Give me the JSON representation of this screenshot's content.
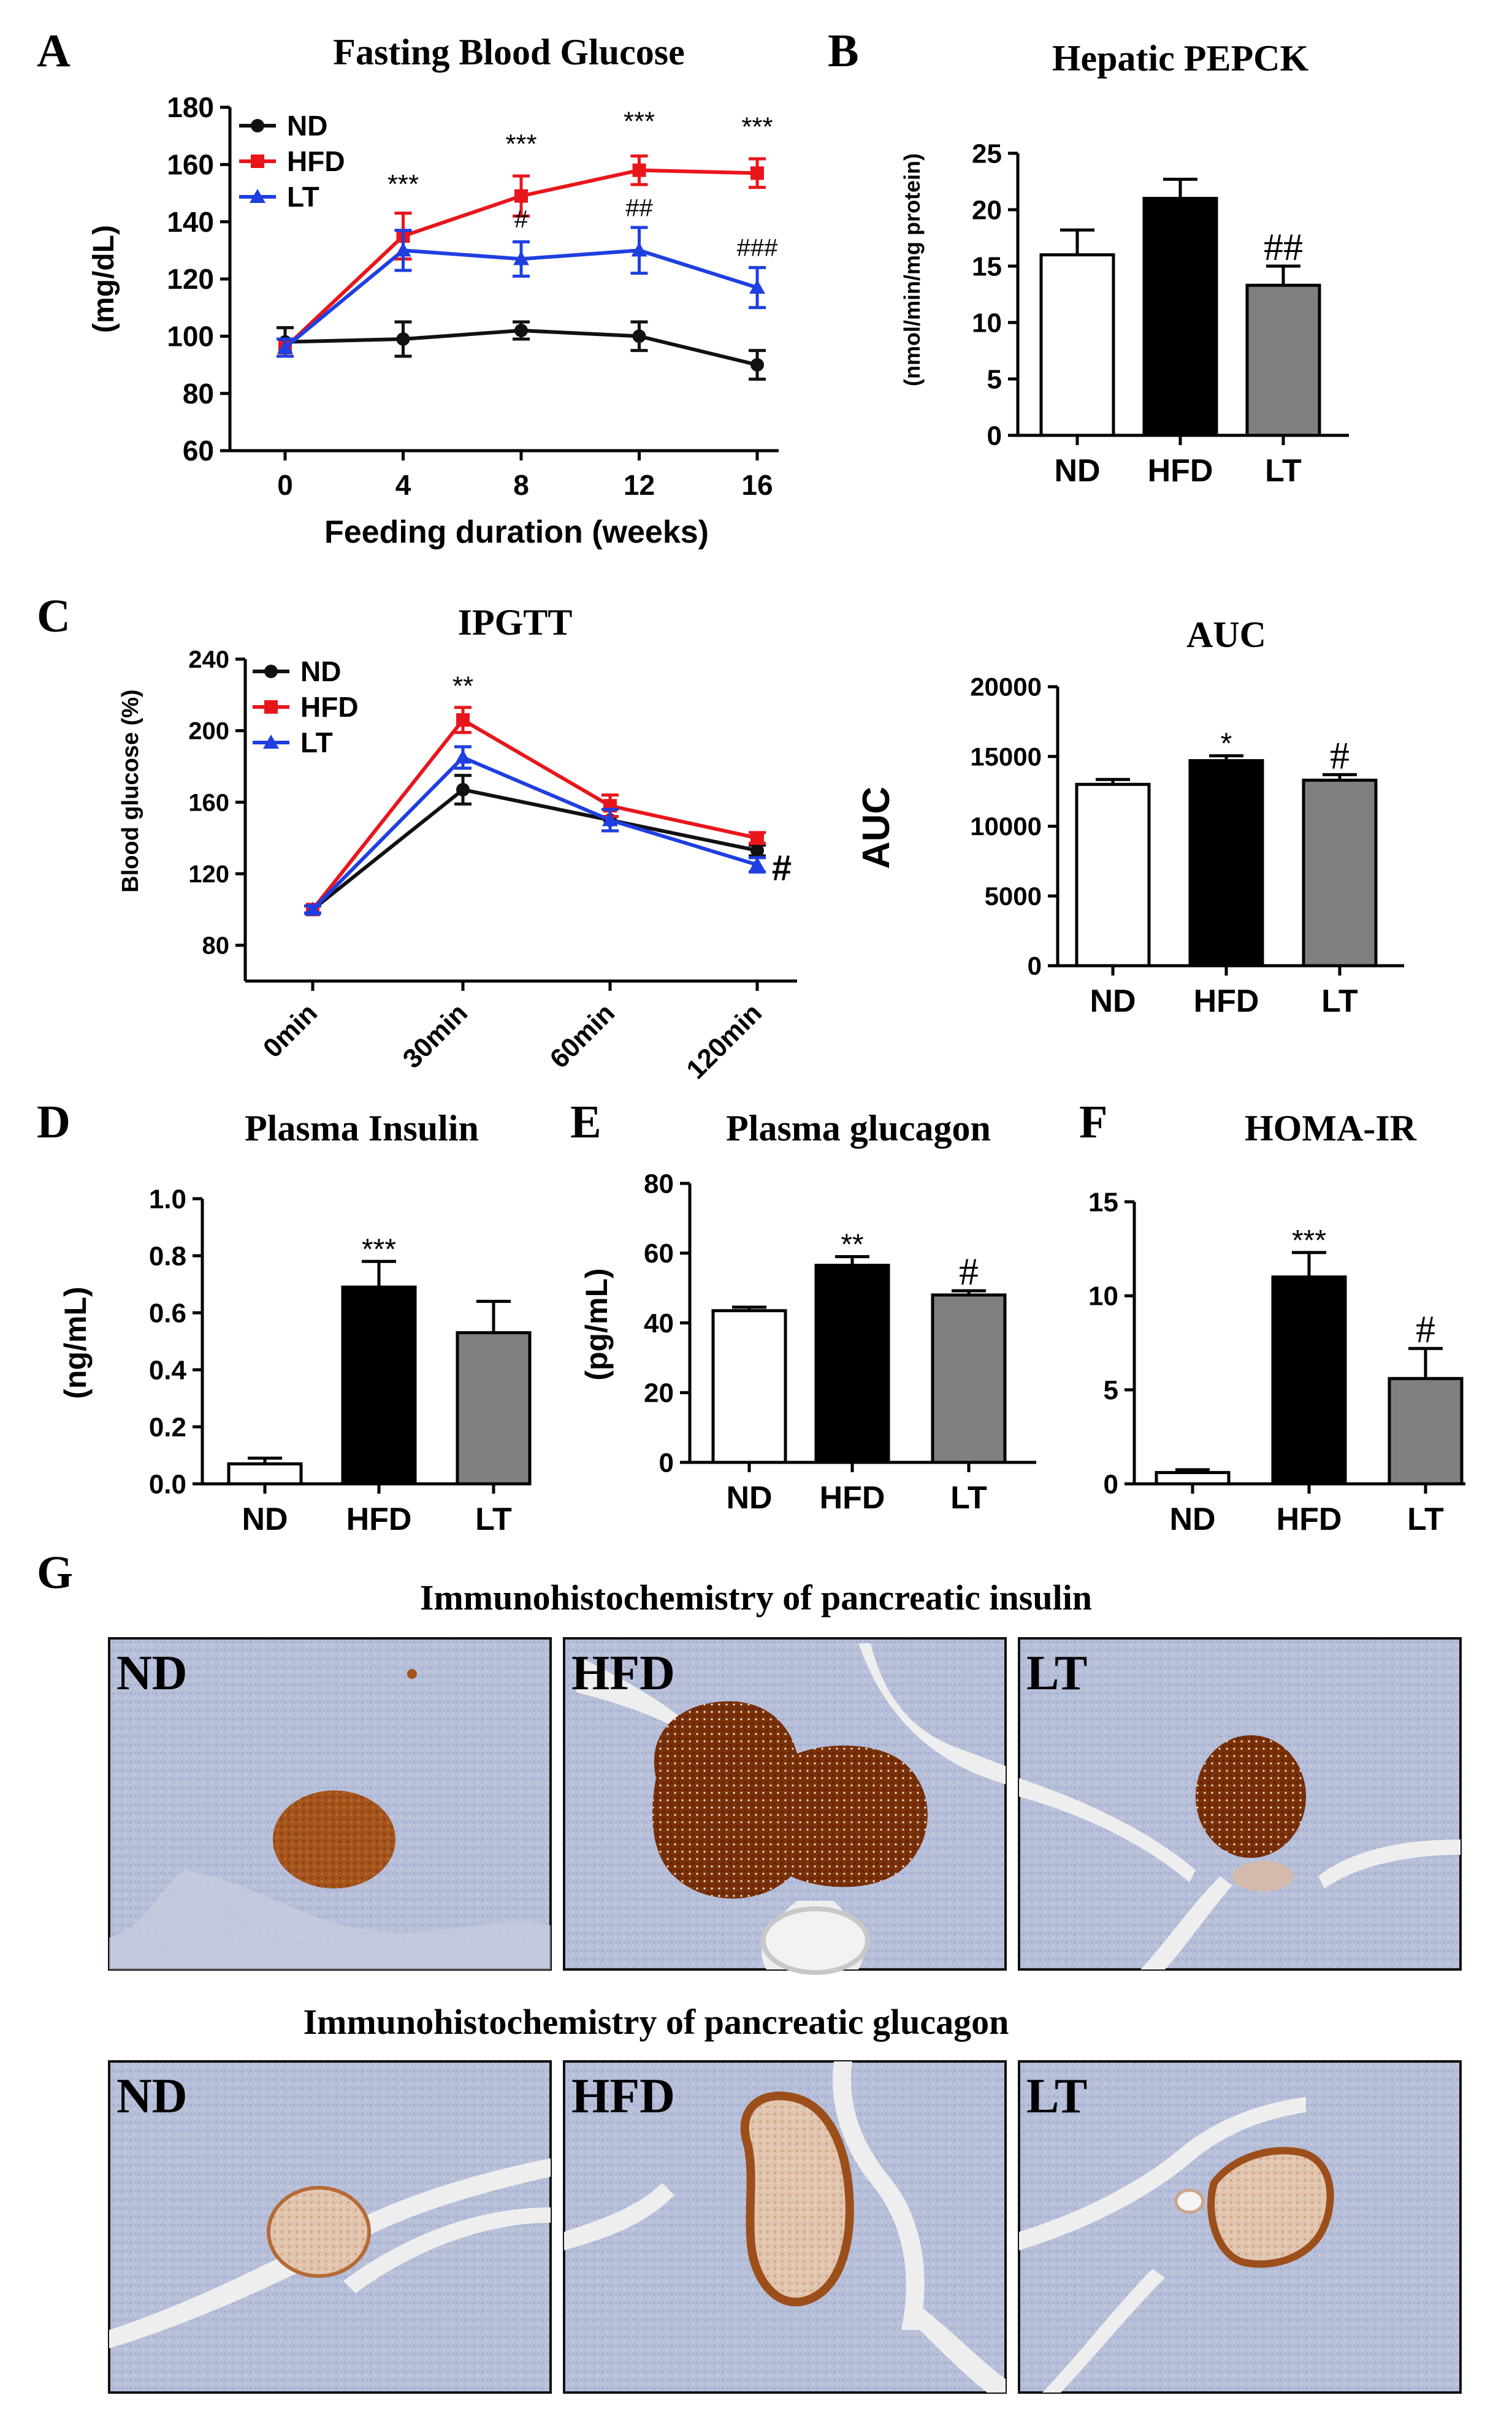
{
  "panel_letters": [
    "A",
    "B",
    "C",
    "D",
    "E",
    "F",
    "G"
  ],
  "colors": {
    "ND": "#111111",
    "HFD": "#e8161b",
    "LT": "#1f3fe0",
    "bar_nd": "#ffffff",
    "bar_hfd": "#000000",
    "bar_lt": "#808080"
  },
  "chart_data": [
    {
      "id": "A",
      "type": "line",
      "title": "Fasting Blood Glucose",
      "xlabel": "Feeding duration (weeks)",
      "ylabel": "(mg/dL)",
      "x": [
        0,
        4,
        8,
        12,
        16
      ],
      "xticks": [
        "0",
        "4",
        "8",
        "12",
        "16"
      ],
      "ylim": [
        60,
        180
      ],
      "yticks": [
        60,
        80,
        100,
        120,
        140,
        160,
        180
      ],
      "legend": "top-left",
      "series": [
        {
          "name": "ND",
          "color": "#111111",
          "marker": "circle",
          "values": [
            98,
            99,
            102,
            100,
            90
          ],
          "err": [
            5,
            6,
            3,
            5,
            5
          ]
        },
        {
          "name": "HFD",
          "color": "#e8161b",
          "marker": "square",
          "values": [
            96,
            135,
            149,
            158,
            157
          ],
          "err": [
            3,
            8,
            7,
            5,
            5
          ]
        },
        {
          "name": "LT",
          "color": "#1f3fe0",
          "marker": "triangle",
          "values": [
            96,
            130,
            127,
            130,
            117
          ],
          "err": [
            3,
            7,
            6,
            8,
            7
          ]
        }
      ],
      "annotations": [
        {
          "x": 4,
          "y": 150,
          "text": "***"
        },
        {
          "x": 8,
          "y": 164,
          "text": "***"
        },
        {
          "x": 12,
          "y": 172,
          "text": "***"
        },
        {
          "x": 16,
          "y": 170,
          "text": "***"
        },
        {
          "x": 8,
          "y": 138,
          "text": "#"
        },
        {
          "x": 12,
          "y": 142,
          "text": "##"
        },
        {
          "x": 16,
          "y": 128,
          "text": "###"
        }
      ]
    },
    {
      "id": "B",
      "type": "bar",
      "title": "Hepatic PEPCK",
      "ylabel": "(nmol/min/mg protein)",
      "categories": [
        "ND",
        "HFD",
        "LT"
      ],
      "values": [
        16,
        21,
        13.3
      ],
      "err": [
        2.2,
        1.7,
        1.7
      ],
      "ylim": [
        0,
        25
      ],
      "yticks": [
        0,
        5,
        10,
        15,
        20,
        25
      ],
      "annotations": [
        {
          "index": 2,
          "text": "##"
        }
      ]
    },
    {
      "id": "C1",
      "type": "line",
      "title": "IPGTT",
      "xlabel": "",
      "ylabel": "Blood glucose (%)",
      "x": [
        "0min",
        "30min",
        "60min",
        "120min"
      ],
      "ylim": [
        60,
        240
      ],
      "yticks": [
        80,
        120,
        160,
        200,
        240
      ],
      "legend": "top-left",
      "series": [
        {
          "name": "ND",
          "color": "#111111",
          "marker": "circle",
          "values": [
            100,
            167,
            150,
            133
          ],
          "err": [
            2,
            8,
            6,
            3
          ]
        },
        {
          "name": "HFD",
          "color": "#e8161b",
          "marker": "square",
          "values": [
            100,
            206,
            158,
            140
          ],
          "err": [
            2,
            7,
            6,
            3
          ]
        },
        {
          "name": "LT",
          "color": "#1f3fe0",
          "marker": "triangle",
          "values": [
            100,
            185,
            150,
            125
          ],
          "err": [
            2,
            6,
            6,
            4
          ]
        }
      ],
      "annotations": [
        {
          "index": 1,
          "y": 220,
          "text": "**"
        },
        {
          "index": 3,
          "y": 125,
          "text": "#"
        }
      ]
    },
    {
      "id": "C2",
      "type": "bar",
      "title": "AUC",
      "ylabel": "AUC",
      "categories": [
        "ND",
        "HFD",
        "LT"
      ],
      "values": [
        13000,
        14700,
        13300
      ],
      "err": [
        350,
        350,
        400
      ],
      "ylim": [
        0,
        20000
      ],
      "yticks": [
        0,
        5000,
        10000,
        15000,
        20000
      ],
      "annotations": [
        {
          "index": 1,
          "text": "*"
        },
        {
          "index": 2,
          "text": "#"
        }
      ]
    },
    {
      "id": "D",
      "type": "bar",
      "title": "Plasma Insulin",
      "ylabel": "(ng/mL)",
      "categories": [
        "ND",
        "HFD",
        "LT"
      ],
      "values": [
        0.07,
        0.69,
        0.53
      ],
      "err": [
        0.02,
        0.09,
        0.11
      ],
      "ylim": [
        0,
        1.0
      ],
      "yticks": [
        "0.0",
        "0.2",
        "0.4",
        "0.6",
        "0.8",
        "1.0"
      ],
      "annotations": [
        {
          "index": 1,
          "text": "***"
        }
      ]
    },
    {
      "id": "E",
      "type": "bar",
      "title": "Plasma glucagon",
      "ylabel": "(pg/mL)",
      "categories": [
        "ND",
        "HFD",
        "LT"
      ],
      "values": [
        43.5,
        56.5,
        48
      ],
      "err": [
        1,
        2.5,
        1.2
      ],
      "ylim": [
        0,
        80
      ],
      "yticks": [
        0,
        20,
        40,
        60,
        80
      ],
      "annotations": [
        {
          "index": 1,
          "text": "**"
        },
        {
          "index": 2,
          "text": "#"
        }
      ]
    },
    {
      "id": "F",
      "type": "bar",
      "title": "HOMA-IR",
      "ylabel": "",
      "categories": [
        "ND",
        "HFD",
        "LT"
      ],
      "values": [
        0.6,
        11,
        5.6
      ],
      "err": [
        0.15,
        1.3,
        1.6
      ],
      "ylim": [
        0,
        15
      ],
      "yticks": [
        0,
        5,
        10,
        15
      ],
      "annotations": [
        {
          "index": 1,
          "text": "***"
        },
        {
          "index": 2,
          "text": "#"
        }
      ]
    }
  ],
  "histology": {
    "insulin_title": "Immunohistochemistry of pancreatic insulin",
    "glucagon_title": "Immunohistochemistry of pancreatic glucagon",
    "labels": [
      "ND",
      "HFD",
      "LT"
    ]
  }
}
